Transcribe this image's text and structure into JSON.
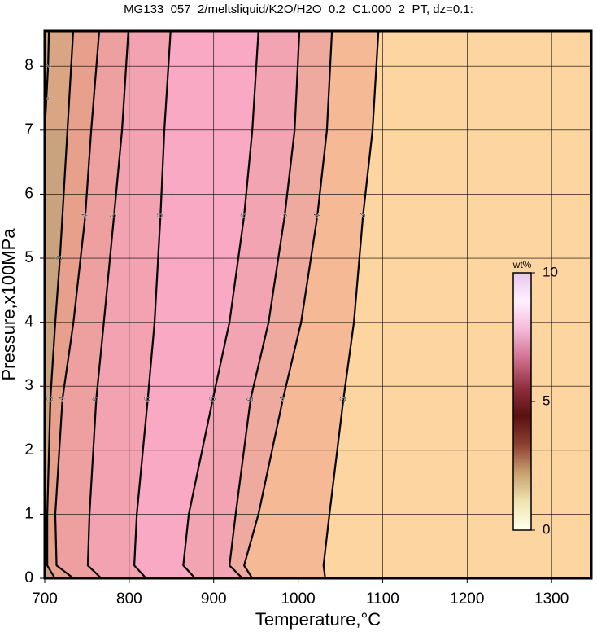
{
  "chart_data": {
    "type": "contour",
    "title": "MG133_057_2/meltsliquid/K2O/H2O_0.2_C1.000_2_PT, dz=0.1:",
    "xlabel": "Temperature,°C",
    "ylabel": "Pressure,x100MPa",
    "xlim": [
      700,
      1347
    ],
    "ylim": [
      0,
      8.55
    ],
    "xticks": [
      700,
      800,
      900,
      1000,
      1100,
      1200,
      1300
    ],
    "yticks": [
      0,
      1,
      2,
      3,
      4,
      5,
      6,
      7,
      8
    ],
    "grid": true,
    "region_colors": [
      "#c9a37e",
      "#d9a683",
      "#e6a08c",
      "#eea0a0",
      "#f3a2b2",
      "#f9a9c4",
      "#f3a4b2",
      "#efaa9f",
      "#f5b996",
      "#fdd5a0"
    ],
    "contours": [
      {
        "level": 2,
        "x": [
          700,
          702,
          704,
          705
        ],
        "y": [
          7,
          7.5,
          8,
          8.55
        ]
      },
      {
        "level": 3,
        "x": [
          712,
          703,
          703,
          706.7,
          712.5,
          718,
          726,
          733.7
        ],
        "y": [
          0,
          0.2,
          1,
          2.8,
          4,
          5,
          6.8,
          8.55
        ]
      },
      {
        "level": 4,
        "x": [
          734,
          714,
          712.5,
          721,
          734,
          748,
          755,
          764.5
        ],
        "y": [
          0,
          0.2,
          1,
          2.8,
          4,
          5.66,
          7,
          8.55
        ]
      },
      {
        "level": 5,
        "x": [
          767,
          751,
          753,
          761,
          770,
          782,
          791.5,
          799
        ],
        "y": [
          0,
          0.2,
          1,
          2.8,
          4,
          5.66,
          7,
          8.55
        ]
      },
      {
        "level": 6,
        "x": [
          820,
          806,
          809,
          822,
          830,
          837,
          841.6,
          849
        ],
        "y": [
          0,
          0.2,
          1,
          2.8,
          4,
          5.66,
          7,
          8.55
        ]
      },
      {
        "level": 6,
        "x": [
          878,
          864,
          870.5,
          899,
          918.7,
          936,
          945.7,
          953
        ],
        "y": [
          0,
          0.2,
          1,
          2.8,
          4,
          5.66,
          7,
          8.55
        ]
      },
      {
        "level": 5,
        "x": [
          934,
          918.7,
          926,
          943.7,
          965,
          984,
          995.8,
          1001.5
        ],
        "y": [
          0,
          0.2,
          1,
          2.8,
          4,
          5.66,
          7,
          8.55
        ]
      },
      {
        "level": 4,
        "x": [
          945.7,
          936,
          953,
          982,
          1003.5,
          1022.7,
          1034,
          1040
        ],
        "y": [
          0,
          0.2,
          1,
          2.8,
          4,
          5.66,
          7,
          8.55
        ]
      },
      {
        "level": 3,
        "x": [
          1032,
          1030,
          1037,
          1053.6,
          1066,
          1076.7,
          1088,
          1095
        ],
        "y": [
          0,
          0.2,
          1,
          2.8,
          4,
          5.66,
          7,
          8.55
        ]
      }
    ],
    "colorbar": {
      "label": "wt%",
      "clim": [
        0,
        10
      ],
      "ticks": [
        0,
        5,
        10
      ],
      "colors": [
        "#fffff0",
        "#f0e4b0",
        "#c8a070",
        "#8a4030",
        "#5a1010",
        "#903040",
        "#d07090",
        "#f4b8d8",
        "#fff0ff",
        "#e8c8ec"
      ]
    }
  }
}
